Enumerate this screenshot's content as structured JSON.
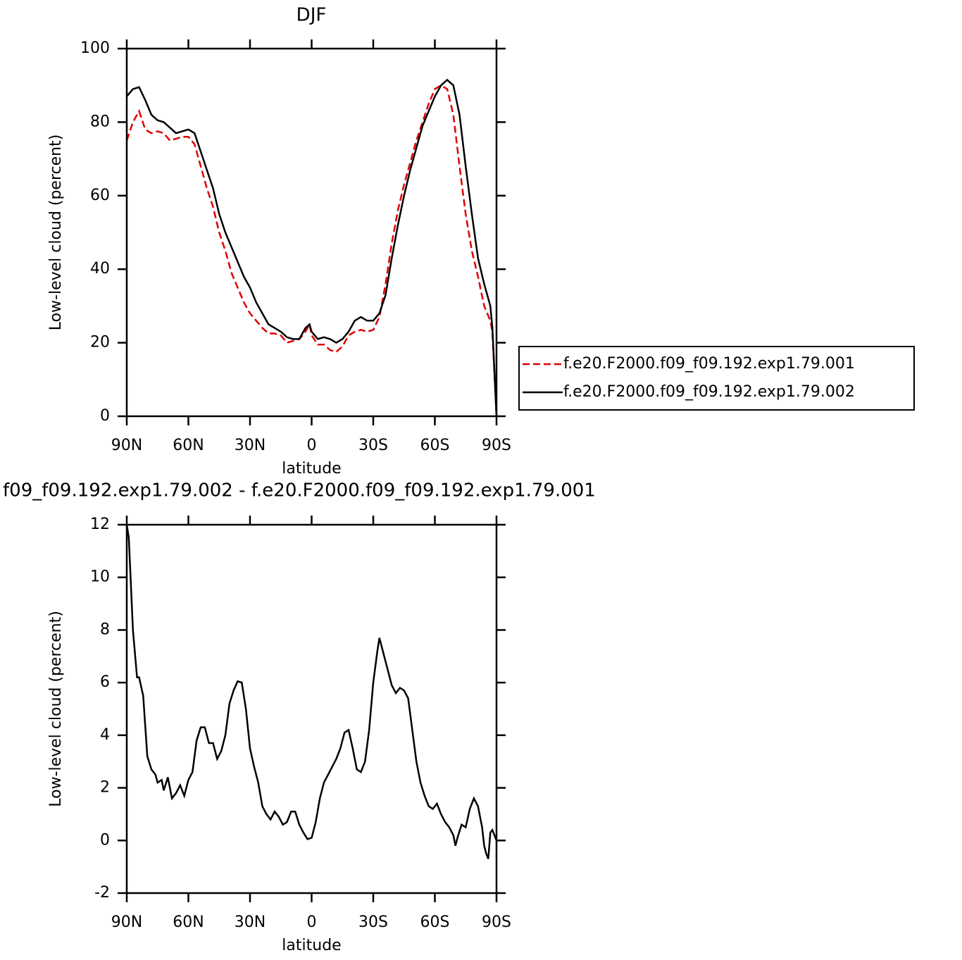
{
  "chart_data": [
    {
      "type": "line",
      "title": "DJF",
      "y_label": "Low-level cloud (percent)",
      "x_label": "latitude",
      "xlim": [
        90,
        -90
      ],
      "ylim": [
        0,
        100
      ],
      "xticks": [
        {
          "value": 90,
          "label": "90N"
        },
        {
          "value": 60,
          "label": "60N"
        },
        {
          "value": 30,
          "label": "30N"
        },
        0,
        {
          "value": -30,
          "label": "30S"
        },
        {
          "value": -60,
          "label": "60S"
        },
        {
          "value": -90,
          "label": "90S"
        }
      ],
      "yticks": [
        0,
        20,
        40,
        60,
        80,
        100
      ],
      "legend": "right",
      "x": [
        90,
        87,
        84,
        81,
        78,
        75,
        72,
        69,
        66,
        63,
        60,
        57,
        54,
        51,
        48,
        45,
        42,
        39,
        36,
        33,
        30,
        27,
        24,
        21,
        18,
        15,
        12,
        9,
        6,
        3,
        1,
        0,
        -3,
        -6,
        -9,
        -12,
        -15,
        -18,
        -21,
        -24,
        -27,
        -30,
        -33,
        -36,
        -39,
        -42,
        -45,
        -48,
        -51,
        -54,
        -57,
        -60,
        -63,
        -66,
        -69,
        -72,
        -75,
        -78,
        -81,
        -84,
        -87,
        -88,
        -90
      ],
      "series": [
        {
          "name": "f.e20.F2000.f09_f09.192.exp1.79.001",
          "color": "#e00000",
          "dashed": true,
          "values": [
            75,
            80,
            83,
            78,
            77,
            77.5,
            77,
            75,
            75.5,
            76,
            76,
            74,
            68,
            62,
            57,
            50,
            45,
            39,
            35,
            31,
            28,
            26,
            24,
            22.5,
            22.5,
            22,
            20,
            20.5,
            21,
            23,
            25,
            22,
            19.5,
            19.5,
            18,
            17.5,
            19,
            22,
            23,
            23.5,
            23,
            23.5,
            27,
            36,
            47,
            56,
            63,
            69,
            75,
            80,
            85,
            89,
            90,
            89,
            82,
            68,
            55,
            45,
            38,
            30,
            26,
            23,
            0
          ]
        },
        {
          "name": "f.e20.F2000.f09_f09.192.exp1.79.002",
          "color": "#000000",
          "dashed": false,
          "values": [
            87,
            89,
            89.5,
            86,
            82,
            80.5,
            80,
            78.5,
            77,
            77.5,
            78,
            77,
            72,
            67,
            62,
            55,
            50,
            46,
            42,
            38,
            35,
            31,
            28,
            25,
            24,
            23,
            21.5,
            21,
            21,
            24,
            25,
            23,
            21,
            21.5,
            21,
            20,
            21,
            23,
            26,
            27,
            26,
            26,
            28,
            33,
            43,
            52,
            60,
            67,
            73,
            79,
            83,
            87,
            90,
            91.5,
            90,
            82,
            68,
            55,
            43,
            36,
            30,
            24,
            0
          ]
        }
      ]
    },
    {
      "type": "line",
      "title": "f09_f09.192.exp1.79.002 - f.e20.F2000.f09_f09.192.exp1.79.001",
      "y_label": "Low-level cloud (percent)",
      "x_label": "latitude",
      "xlim": [
        90,
        -90
      ],
      "ylim": [
        -2,
        12
      ],
      "xticks": [
        {
          "value": 90,
          "label": "90N"
        },
        {
          "value": 60,
          "label": "60N"
        },
        {
          "value": 30,
          "label": "30N"
        },
        0,
        {
          "value": -30,
          "label": "30S"
        },
        {
          "value": -60,
          "label": "60S"
        },
        {
          "value": -90,
          "label": "90S"
        }
      ],
      "yticks": [
        -2,
        0,
        2,
        4,
        6,
        8,
        10,
        12
      ],
      "x": [
        90,
        89,
        87,
        85,
        84,
        82,
        80,
        78,
        76,
        75,
        73,
        72,
        70,
        68,
        66,
        64,
        62,
        60,
        58,
        56,
        54,
        52,
        50,
        48,
        46,
        44,
        42,
        40,
        38,
        36,
        34,
        32,
        30,
        28,
        26,
        24,
        22,
        20,
        18,
        16,
        14,
        12,
        10,
        8,
        6,
        4,
        2,
        0,
        -2,
        -4,
        -6,
        -8,
        -10,
        -12,
        -14,
        -16,
        -18,
        -20,
        -22,
        -24,
        -26,
        -28,
        -30,
        -32,
        -33,
        -35,
        -37,
        -39,
        -41,
        -43,
        -45,
        -47,
        -49,
        -51,
        -53,
        -55,
        -57,
        -59,
        -61,
        -63,
        -65,
        -67,
        -69,
        -70,
        -71,
        -73,
        -75,
        -77,
        -79,
        -81,
        -83,
        -84,
        -85,
        -86,
        -87,
        -88,
        -90
      ],
      "series": [
        {
          "color": "#000000",
          "dashed": false,
          "values": [
            12,
            11.5,
            8,
            6.2,
            6.2,
            5.5,
            3.2,
            2.7,
            2.5,
            2.2,
            2.3,
            1.9,
            2.4,
            1.6,
            1.8,
            2.1,
            1.7,
            2.3,
            2.6,
            3.8,
            4.3,
            4.3,
            3.7,
            3.7,
            3.1,
            3.4,
            4.0,
            5.2,
            5.7,
            6.05,
            6.0,
            5.0,
            3.5,
            2.8,
            2.2,
            1.3,
            1.0,
            0.8,
            1.1,
            0.9,
            0.6,
            0.7,
            1.1,
            1.1,
            0.6,
            0.3,
            0.05,
            0.1,
            0.7,
            1.6,
            2.2,
            2.5,
            2.8,
            3.1,
            3.5,
            4.1,
            4.2,
            3.5,
            2.7,
            2.6,
            3.0,
            4.2,
            6.0,
            7.2,
            7.7,
            7.1,
            6.5,
            5.9,
            5.6,
            5.8,
            5.7,
            5.4,
            4.2,
            3.0,
            2.2,
            1.7,
            1.3,
            1.2,
            1.4,
            1.0,
            0.7,
            0.5,
            0.2,
            -0.2,
            0.1,
            0.6,
            0.5,
            1.2,
            1.6,
            1.3,
            0.5,
            -0.2,
            -0.5,
            -0.7,
            0.3,
            0.4,
            0.0
          ]
        }
      ]
    }
  ]
}
